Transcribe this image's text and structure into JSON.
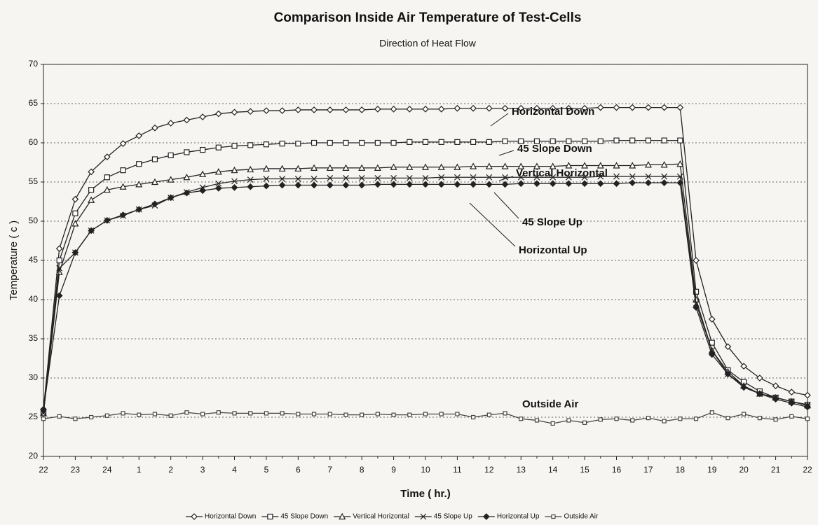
{
  "chart_data": {
    "type": "line",
    "title": "Comparison Inside Air Temperature of Test-Cells",
    "subtitle": "Direction of Heat Flow",
    "x_label": "Time ( hr.)",
    "y_label": "Temperature ( c )",
    "categories": [
      "22",
      null,
      "23",
      null,
      "24",
      null,
      "1",
      null,
      "2",
      null,
      "3",
      null,
      "4",
      null,
      "5",
      null,
      "6",
      null,
      "7",
      null,
      "8",
      null,
      "9",
      null,
      "10",
      null,
      "11",
      null,
      "12",
      null,
      "13",
      null,
      "14",
      null,
      "15",
      null,
      "16",
      null,
      "17",
      null,
      "18",
      null,
      "19",
      null,
      "20",
      null,
      "21",
      null,
      "22"
    ],
    "ylim": [
      20,
      70
    ],
    "yticks": [
      20,
      25,
      30,
      35,
      40,
      45,
      50,
      55,
      60,
      65,
      70
    ],
    "grid": true,
    "legend": "bottom",
    "series": [
      {
        "name": "Horizontal Down",
        "color": "#222222",
        "marker": "diamond-open",
        "values": [
          26,
          46.5,
          52.8,
          56.3,
          58.2,
          59.9,
          60.9,
          61.9,
          62.5,
          62.9,
          63.3,
          63.7,
          63.9,
          64.0,
          64.1,
          64.1,
          64.2,
          64.2,
          64.2,
          64.2,
          64.2,
          64.3,
          64.3,
          64.3,
          64.3,
          64.3,
          64.4,
          64.4,
          64.4,
          64.4,
          64.4,
          64.4,
          64.4,
          64.4,
          64.4,
          64.5,
          64.5,
          64.5,
          64.5,
          64.5,
          64.5,
          45,
          37.5,
          34,
          31.5,
          30,
          29,
          28.2,
          27.8
        ]
      },
      {
        "name": "45 Slope Down",
        "color": "#222222",
        "marker": "square-open",
        "values": [
          25.5,
          45,
          51,
          54,
          55.6,
          56.5,
          57.3,
          57.9,
          58.4,
          58.8,
          59.1,
          59.4,
          59.6,
          59.7,
          59.8,
          59.9,
          59.9,
          60.0,
          60.0,
          60.0,
          60.0,
          60.0,
          60.0,
          60.1,
          60.1,
          60.1,
          60.1,
          60.1,
          60.1,
          60.2,
          60.2,
          60.2,
          60.2,
          60.2,
          60.2,
          60.2,
          60.3,
          60.3,
          60.3,
          60.3,
          60.3,
          41,
          34.5,
          31,
          29.5,
          28.3,
          27.5,
          27,
          26.6
        ]
      },
      {
        "name": "Vertical Horizontal",
        "color": "#222222",
        "marker": "triangle-open",
        "values": [
          25.5,
          43.5,
          49.7,
          52.7,
          54,
          54.4,
          54.7,
          55.0,
          55.3,
          55.6,
          56.0,
          56.3,
          56.5,
          56.6,
          56.7,
          56.7,
          56.7,
          56.8,
          56.8,
          56.8,
          56.8,
          56.8,
          56.9,
          56.9,
          56.9,
          56.9,
          56.9,
          57.0,
          57.0,
          57.0,
          57.0,
          57.0,
          57.0,
          57.1,
          57.1,
          57.1,
          57.1,
          57.1,
          57.2,
          57.2,
          57.3,
          40,
          33.5,
          30.8,
          29,
          28,
          27.5,
          27,
          26.5
        ]
      },
      {
        "name": "45 Slope Up",
        "color": "#222222",
        "marker": "x",
        "values": [
          25.5,
          44,
          46,
          48.8,
          50.1,
          50.7,
          51.5,
          52,
          53,
          53.7,
          54.3,
          54.8,
          55.1,
          55.3,
          55.4,
          55.4,
          55.4,
          55.4,
          55.5,
          55.5,
          55.5,
          55.5,
          55.5,
          55.5,
          55.5,
          55.6,
          55.6,
          55.6,
          55.6,
          55.6,
          55.6,
          55.6,
          55.6,
          55.6,
          55.6,
          55.7,
          55.7,
          55.7,
          55.7,
          55.7,
          55.7,
          39.5,
          33.5,
          30.5,
          29,
          28,
          27.5,
          27,
          26.5
        ]
      },
      {
        "name": "Horizontal Up",
        "color": "#222222",
        "marker": "diamond-filled",
        "values": [
          26,
          40.5,
          46,
          48.8,
          50.1,
          50.8,
          51.5,
          52.2,
          53,
          53.6,
          53.9,
          54.2,
          54.3,
          54.4,
          54.5,
          54.6,
          54.6,
          54.6,
          54.6,
          54.6,
          54.6,
          54.7,
          54.7,
          54.7,
          54.7,
          54.7,
          54.7,
          54.7,
          54.7,
          54.7,
          54.8,
          54.8,
          54.8,
          54.8,
          54.8,
          54.8,
          54.8,
          54.9,
          54.9,
          54.9,
          54.9,
          39,
          33,
          30.5,
          28.8,
          28,
          27.3,
          26.8,
          26.3
        ]
      },
      {
        "name": "Outside Air",
        "color": "#444444",
        "marker": "square-small",
        "values": [
          24.8,
          25.1,
          24.8,
          25.0,
          25.2,
          25.5,
          25.3,
          25.4,
          25.2,
          25.6,
          25.4,
          25.6,
          25.5,
          25.5,
          25.5,
          25.5,
          25.4,
          25.4,
          25.4,
          25.3,
          25.3,
          25.4,
          25.3,
          25.3,
          25.4,
          25.4,
          25.4,
          25.0,
          25.3,
          25.5,
          24.8,
          24.6,
          24.2,
          24.6,
          24.3,
          24.7,
          24.8,
          24.6,
          24.9,
          24.5,
          24.8,
          24.8,
          25.6,
          24.9,
          25.4,
          24.9,
          24.7,
          25.1,
          24.8
        ]
      }
    ]
  }
}
